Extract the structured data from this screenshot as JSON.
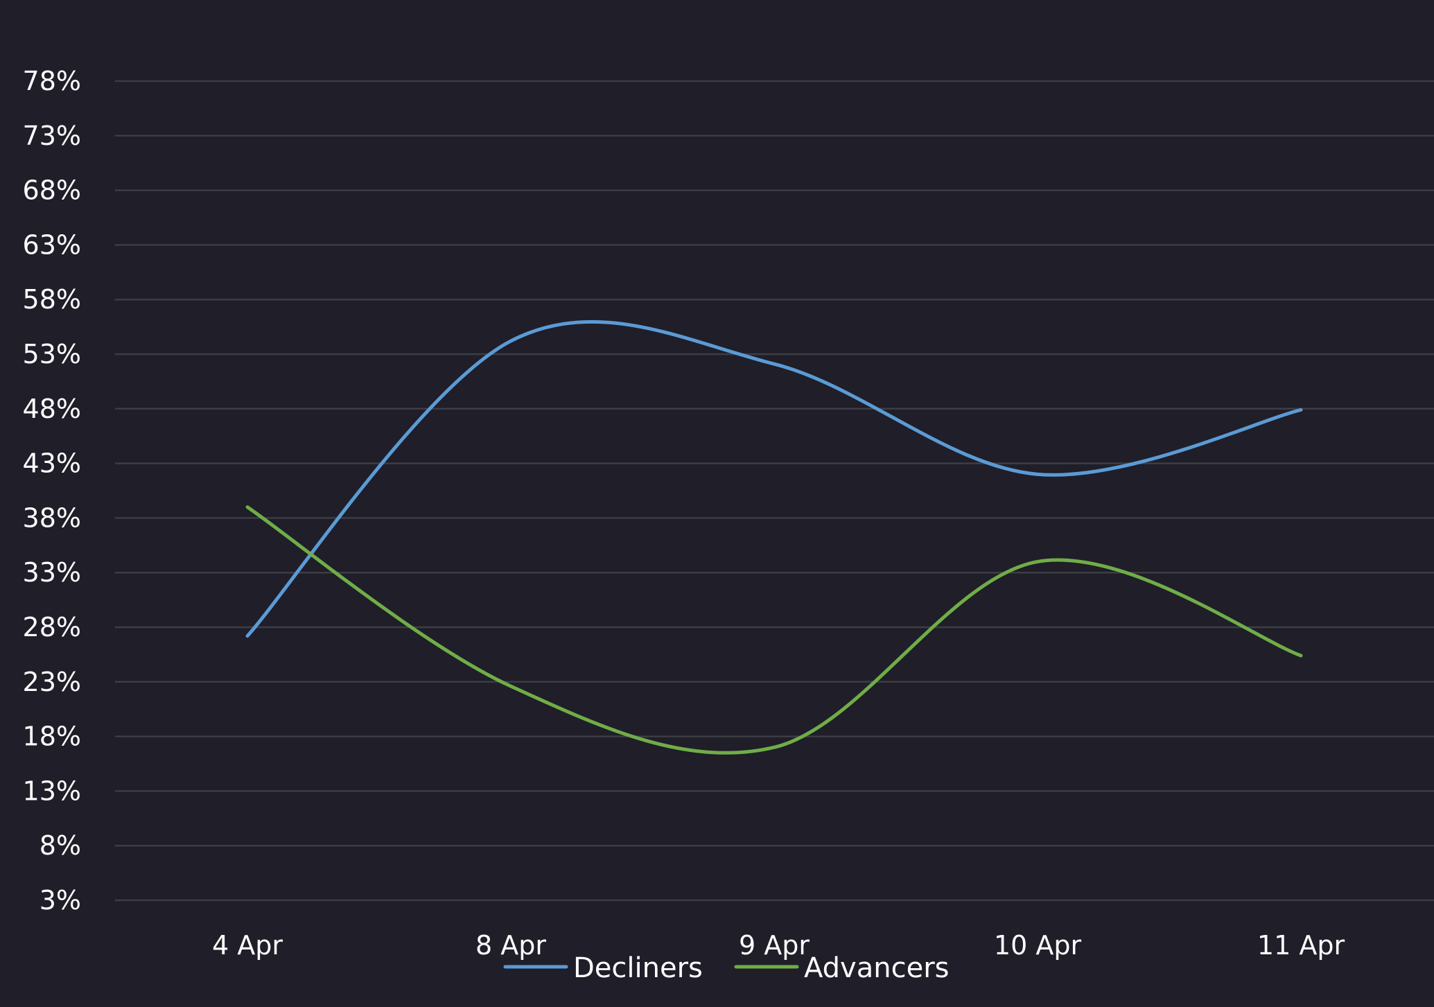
{
  "chart_data": {
    "type": "line",
    "categories": [
      "4 Apr",
      "8 Apr",
      "9 Apr",
      "10 Apr",
      "11 Apr"
    ],
    "series": [
      {
        "name": "Decliners",
        "values": [
          27.2,
          54.2,
          52.1,
          42.0,
          47.9
        ],
        "color": "#5b9bd5"
      },
      {
        "name": "Advancers",
        "values": [
          39.0,
          22.6,
          17.0,
          34.0,
          25.4
        ],
        "color": "#70ad47"
      }
    ],
    "y_ticks": [
      3,
      8,
      13,
      18,
      23,
      28,
      33,
      38,
      43,
      48,
      53,
      58,
      63,
      68,
      73,
      78
    ],
    "y_tick_suffix": "%",
    "ylim": [
      3,
      78
    ],
    "title": "",
    "xlabel": "",
    "ylabel": "",
    "grid": true,
    "legend_position": "bottom",
    "gridline_color": "#3d3d44",
    "background": "#1f1e29"
  }
}
